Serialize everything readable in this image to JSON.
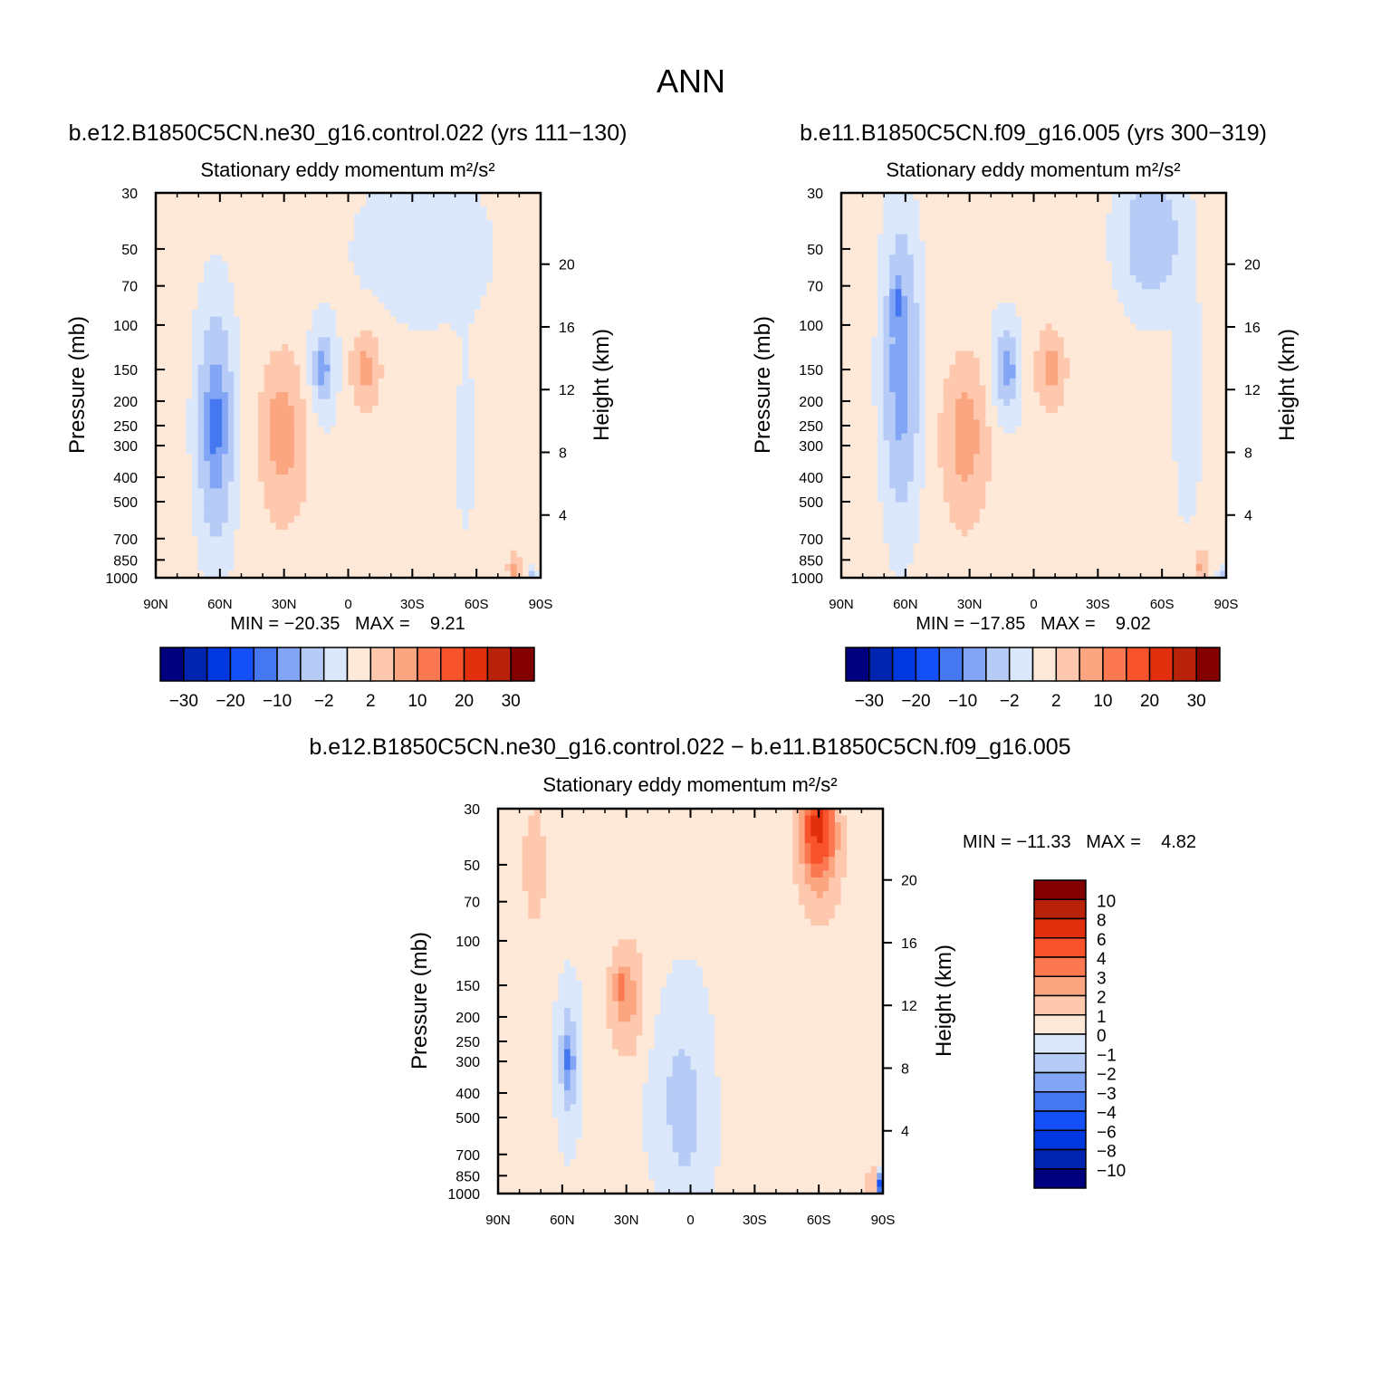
{
  "figure": {
    "title": "ANN"
  },
  "palette": {
    "neg": [
      "#00007e",
      "#0024b0",
      "#0038e0",
      "#1450f5",
      "#4477f0",
      "#82a6f5",
      "#b6cbf6",
      "#dbe7fb"
    ],
    "pos": [
      "#fee8d8",
      "#fdc8ad",
      "#fca681",
      "#fb7850",
      "#f8532a",
      "#e2300e",
      "#b72208",
      "#820000"
    ]
  },
  "chart_data": [
    {
      "id": "panel-a",
      "type": "heatmap",
      "case": "b.e12.B1850C5CN.ne30_g16.control.022 (yrs 111−130)",
      "title": "Stationary eddy momentum",
      "units": "m²/s²",
      "ylabel_left": "Pressure (mb)",
      "ylabel_right": "Height (km)",
      "x_ticks": [
        "90N",
        "60N",
        "30N",
        "0",
        "30S",
        "60S",
        "90S"
      ],
      "y_ticks": [
        30,
        50,
        70,
        100,
        150,
        200,
        250,
        300,
        400,
        500,
        700,
        850,
        1000
      ],
      "height_ticks": [
        20,
        16,
        12,
        8,
        4
      ],
      "stats": "MIN = −20.35   MAX =    9.21",
      "min": -20.35,
      "max": 9.21,
      "colorbar": {
        "orientation": "horizontal",
        "levels": [
          -35,
          -30,
          -25,
          -20,
          -15,
          -10,
          -5,
          -2,
          0,
          2,
          5,
          10,
          15,
          20,
          25,
          30,
          35
        ],
        "labels": [
          "−30",
          "−20",
          "−10",
          "−2",
          "2",
          "10",
          "20",
          "30"
        ]
      }
    },
    {
      "id": "panel-b",
      "type": "heatmap",
      "case": "b.e11.B1850C5CN.f09_g16.005 (yrs 300−319)",
      "title": "Stationary eddy momentum",
      "units": "m²/s²",
      "ylabel_left": "Pressure (mb)",
      "ylabel_right": "Height (km)",
      "x_ticks": [
        "90N",
        "60N",
        "30N",
        "0",
        "30S",
        "60S",
        "90S"
      ],
      "y_ticks": [
        30,
        50,
        70,
        100,
        150,
        200,
        250,
        300,
        400,
        500,
        700,
        850,
        1000
      ],
      "height_ticks": [
        20,
        16,
        12,
        8,
        4
      ],
      "stats": "MIN = −17.85   MAX =    9.02",
      "min": -17.85,
      "max": 9.02,
      "colorbar": {
        "orientation": "horizontal",
        "levels": [
          -35,
          -30,
          -25,
          -20,
          -15,
          -10,
          -5,
          -2,
          0,
          2,
          5,
          10,
          15,
          20,
          25,
          30,
          35
        ],
        "labels": [
          "−30",
          "−20",
          "−10",
          "−2",
          "2",
          "10",
          "20",
          "30"
        ]
      }
    },
    {
      "id": "panel-c",
      "type": "heatmap",
      "case": "b.e12.B1850C5CN.ne30_g16.control.022 − b.e11.B1850C5CN.f09_g16.005",
      "title": "Stationary eddy momentum",
      "units": "m²/s²",
      "ylabel_left": "Pressure (mb)",
      "ylabel_right": "Height (km)",
      "x_ticks": [
        "90N",
        "60N",
        "30N",
        "0",
        "30S",
        "60S",
        "90S"
      ],
      "y_ticks": [
        30,
        50,
        70,
        100,
        150,
        200,
        250,
        300,
        400,
        500,
        700,
        850,
        1000
      ],
      "height_ticks": [
        20,
        16,
        12,
        8,
        4
      ],
      "stats": "MIN = −11.33   MAX =    4.82",
      "min": -11.33,
      "max": 4.82,
      "colorbar": {
        "orientation": "vertical",
        "levels": [
          -12,
          -10,
          -8,
          -6,
          -4,
          -3,
          -2,
          -1,
          0,
          1,
          2,
          3,
          4,
          6,
          8,
          10,
          12
        ],
        "labels": [
          "10",
          "8",
          "6",
          "4",
          "3",
          "2",
          "1",
          "0",
          "−1",
          "−2",
          "−3",
          "−4",
          "−6",
          "−8",
          "−10"
        ]
      }
    }
  ]
}
